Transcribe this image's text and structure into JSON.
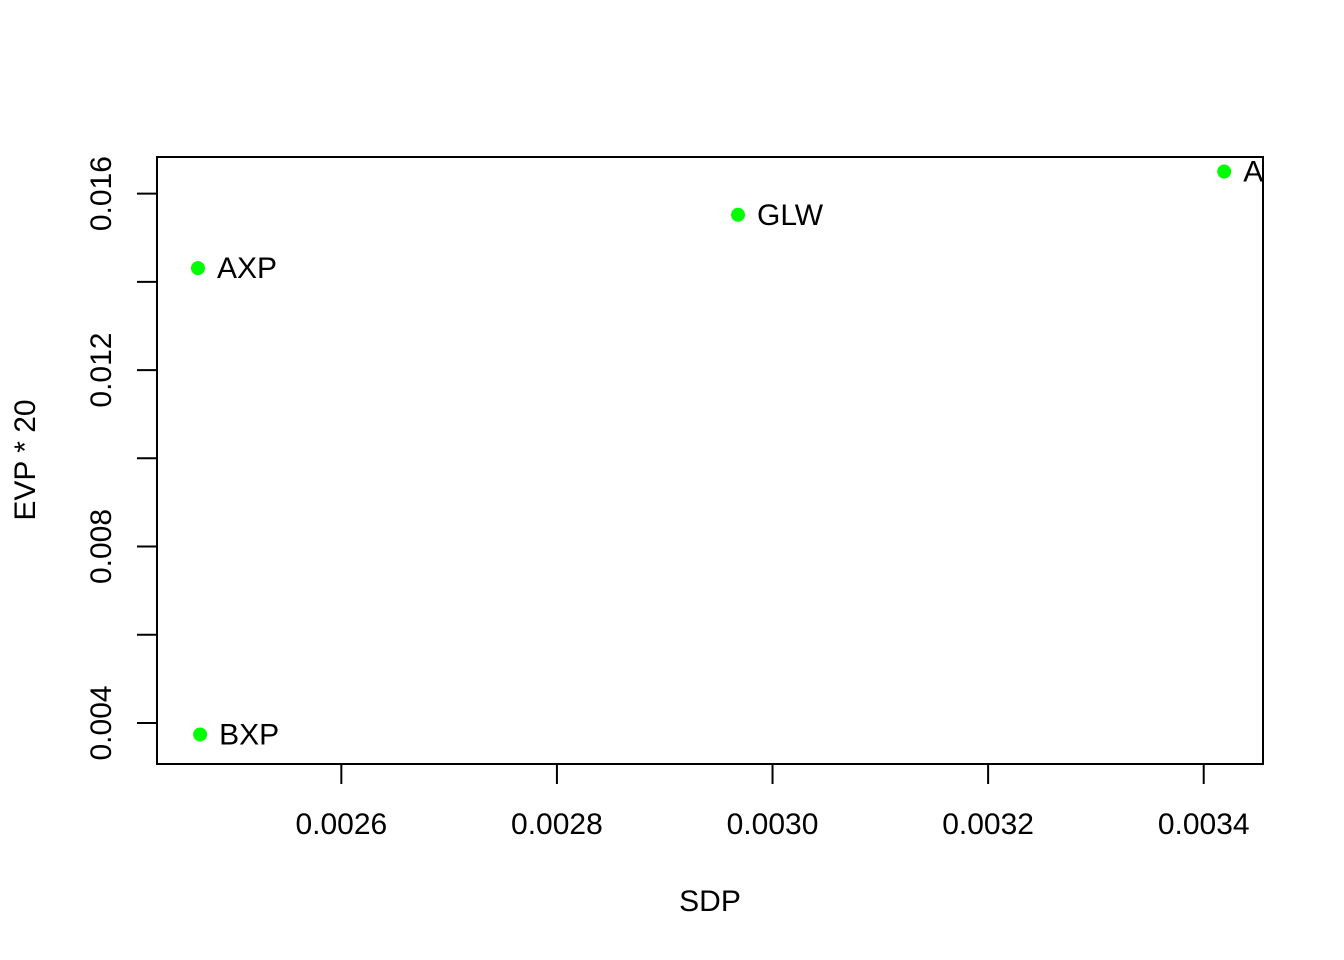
{
  "chart_data": {
    "type": "scatter",
    "title": "",
    "xlabel": "SDP",
    "ylabel": "EVP * 20",
    "xlim": [
      0.002429,
      0.003455
    ],
    "ylim": [
      0.00307,
      0.01683
    ],
    "xticks": [
      0.0026,
      0.0028,
      0.003,
      0.0032,
      0.0034
    ],
    "xtick_labels": [
      "0.0026",
      "0.0028",
      "0.0030",
      "0.0032",
      "0.0034"
    ],
    "yticks": [
      0.004,
      0.006,
      0.008,
      0.01,
      0.012,
      0.014,
      0.016
    ],
    "ytick_labels": [
      "0.004",
      "",
      "0.008",
      "",
      "0.012",
      "",
      "0.016"
    ],
    "grid": false,
    "point_color": "#00ff00",
    "points": [
      {
        "label": "A",
        "x": 0.003419,
        "y": 0.0165
      },
      {
        "label": "GLW",
        "x": 0.002968,
        "y": 0.01552
      },
      {
        "label": "AXP",
        "x": 0.002467,
        "y": 0.01431
      },
      {
        "label": "BXP",
        "x": 0.002469,
        "y": 0.00374
      }
    ]
  }
}
